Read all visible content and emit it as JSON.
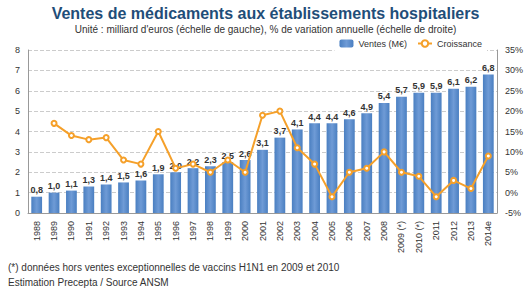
{
  "chart_data": {
    "type": "bar",
    "title": "Ventes de médicaments aux établissements hospitaliers",
    "subtitle": "Unité : milliard d'euros (échelle de gauche), % de variation annuelle (échelle de droite)",
    "annotations": [
      "(*) données hors ventes exceptionnelles de vaccins H1N1 en 2009 et 2010",
      "Estimation Precepta / Source ANSM"
    ],
    "categories": [
      "1988",
      "1989",
      "1990",
      "1991",
      "1992",
      "1993",
      "1994",
      "1995",
      "1996",
      "1997",
      "1998",
      "1999",
      "2000",
      "2001",
      "2002",
      "2003",
      "2004",
      "2005",
      "2006",
      "2007",
      "2008",
      "2009 (*)",
      "2010 (*)",
      "2011",
      "2012",
      "2013",
      "2014e"
    ],
    "series": [
      {
        "name": "Ventes (M€)",
        "type": "bar",
        "color": "#4a7fc1",
        "data_labels": true,
        "values": [
          0.8,
          1.0,
          1.1,
          1.3,
          1.4,
          1.5,
          1.6,
          1.9,
          2.0,
          2.2,
          2.3,
          2.5,
          2.6,
          3.1,
          3.7,
          4.1,
          4.4,
          4.4,
          4.6,
          4.9,
          5.4,
          5.7,
          5.9,
          5.9,
          6.1,
          6.2,
          6.8
        ],
        "value_labels": [
          "0,8",
          "1,0",
          "1,1",
          "1,3",
          "1,4",
          "1,5",
          "1,6",
          "1,9",
          "2,0",
          "2,2",
          "2,3",
          "2,5",
          "2,6",
          "3,1",
          "3,7",
          "4,1",
          "4,4",
          "4,4",
          "4,6",
          "4,9",
          "5,4",
          "5,7",
          "5,9",
          "5,9",
          "6,1",
          "6,2",
          "6,8"
        ]
      },
      {
        "name": "Croissance",
        "type": "line",
        "color": "#f5a02a",
        "axis": "y2",
        "marker": "circle",
        "values": [
          null,
          17,
          14,
          13,
          13.5,
          8,
          7,
          15,
          6,
          7,
          5,
          8,
          5,
          19,
          20,
          11,
          7,
          -1,
          5,
          6,
          10,
          5,
          4,
          -1,
          3,
          1,
          9
        ]
      }
    ],
    "ylim": [
      0,
      8
    ],
    "yticks": [
      0,
      1,
      2,
      3,
      4,
      5,
      6,
      7,
      8
    ],
    "y2lim": [
      -5,
      35
    ],
    "y2ticks": [
      {
        "value": -5,
        "label": "-5%"
      },
      {
        "value": 0,
        "label": "0%"
      },
      {
        "value": 5,
        "label": "5%"
      },
      {
        "value": 10,
        "label": "10%"
      },
      {
        "value": 15,
        "label": "15%"
      },
      {
        "value": 20,
        "label": "20%"
      },
      {
        "value": 25,
        "label": "25%"
      },
      {
        "value": 30,
        "label": "30%"
      },
      {
        "value": 35,
        "label": "35%"
      }
    ],
    "grid": true,
    "legend": "top-right"
  }
}
